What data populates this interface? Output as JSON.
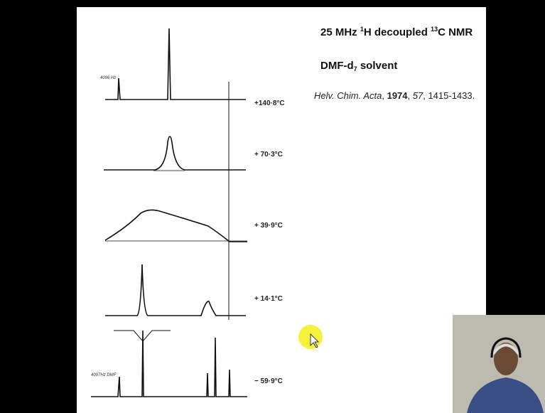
{
  "slide": {
    "title": {
      "part1": "25 MHz ",
      "sup1": "1",
      "part2": "H decoupled ",
      "sup2": "13",
      "part3": "C NMR"
    },
    "solvent": {
      "part1": "DMF-d",
      "sub": "7",
      "part2": " solvent"
    },
    "citation": {
      "journal": "Helv. Chim. Acta",
      "sep1": ", ",
      "year": "1974",
      "sep2": ", ",
      "volume": "57",
      "pages": ", 1415-1433."
    },
    "spectra": [
      {
        "label": "+140·8°C"
      },
      {
        "label": "+ 70·3°C"
      },
      {
        "label": "+ 39·9°C"
      },
      {
        "label": "+ 14·1°C"
      },
      {
        "label": "− 59·9°C"
      }
    ],
    "annotations": {
      "top_left": "4096 Hz",
      "bottom_left": "4097Hz DMF"
    }
  }
}
